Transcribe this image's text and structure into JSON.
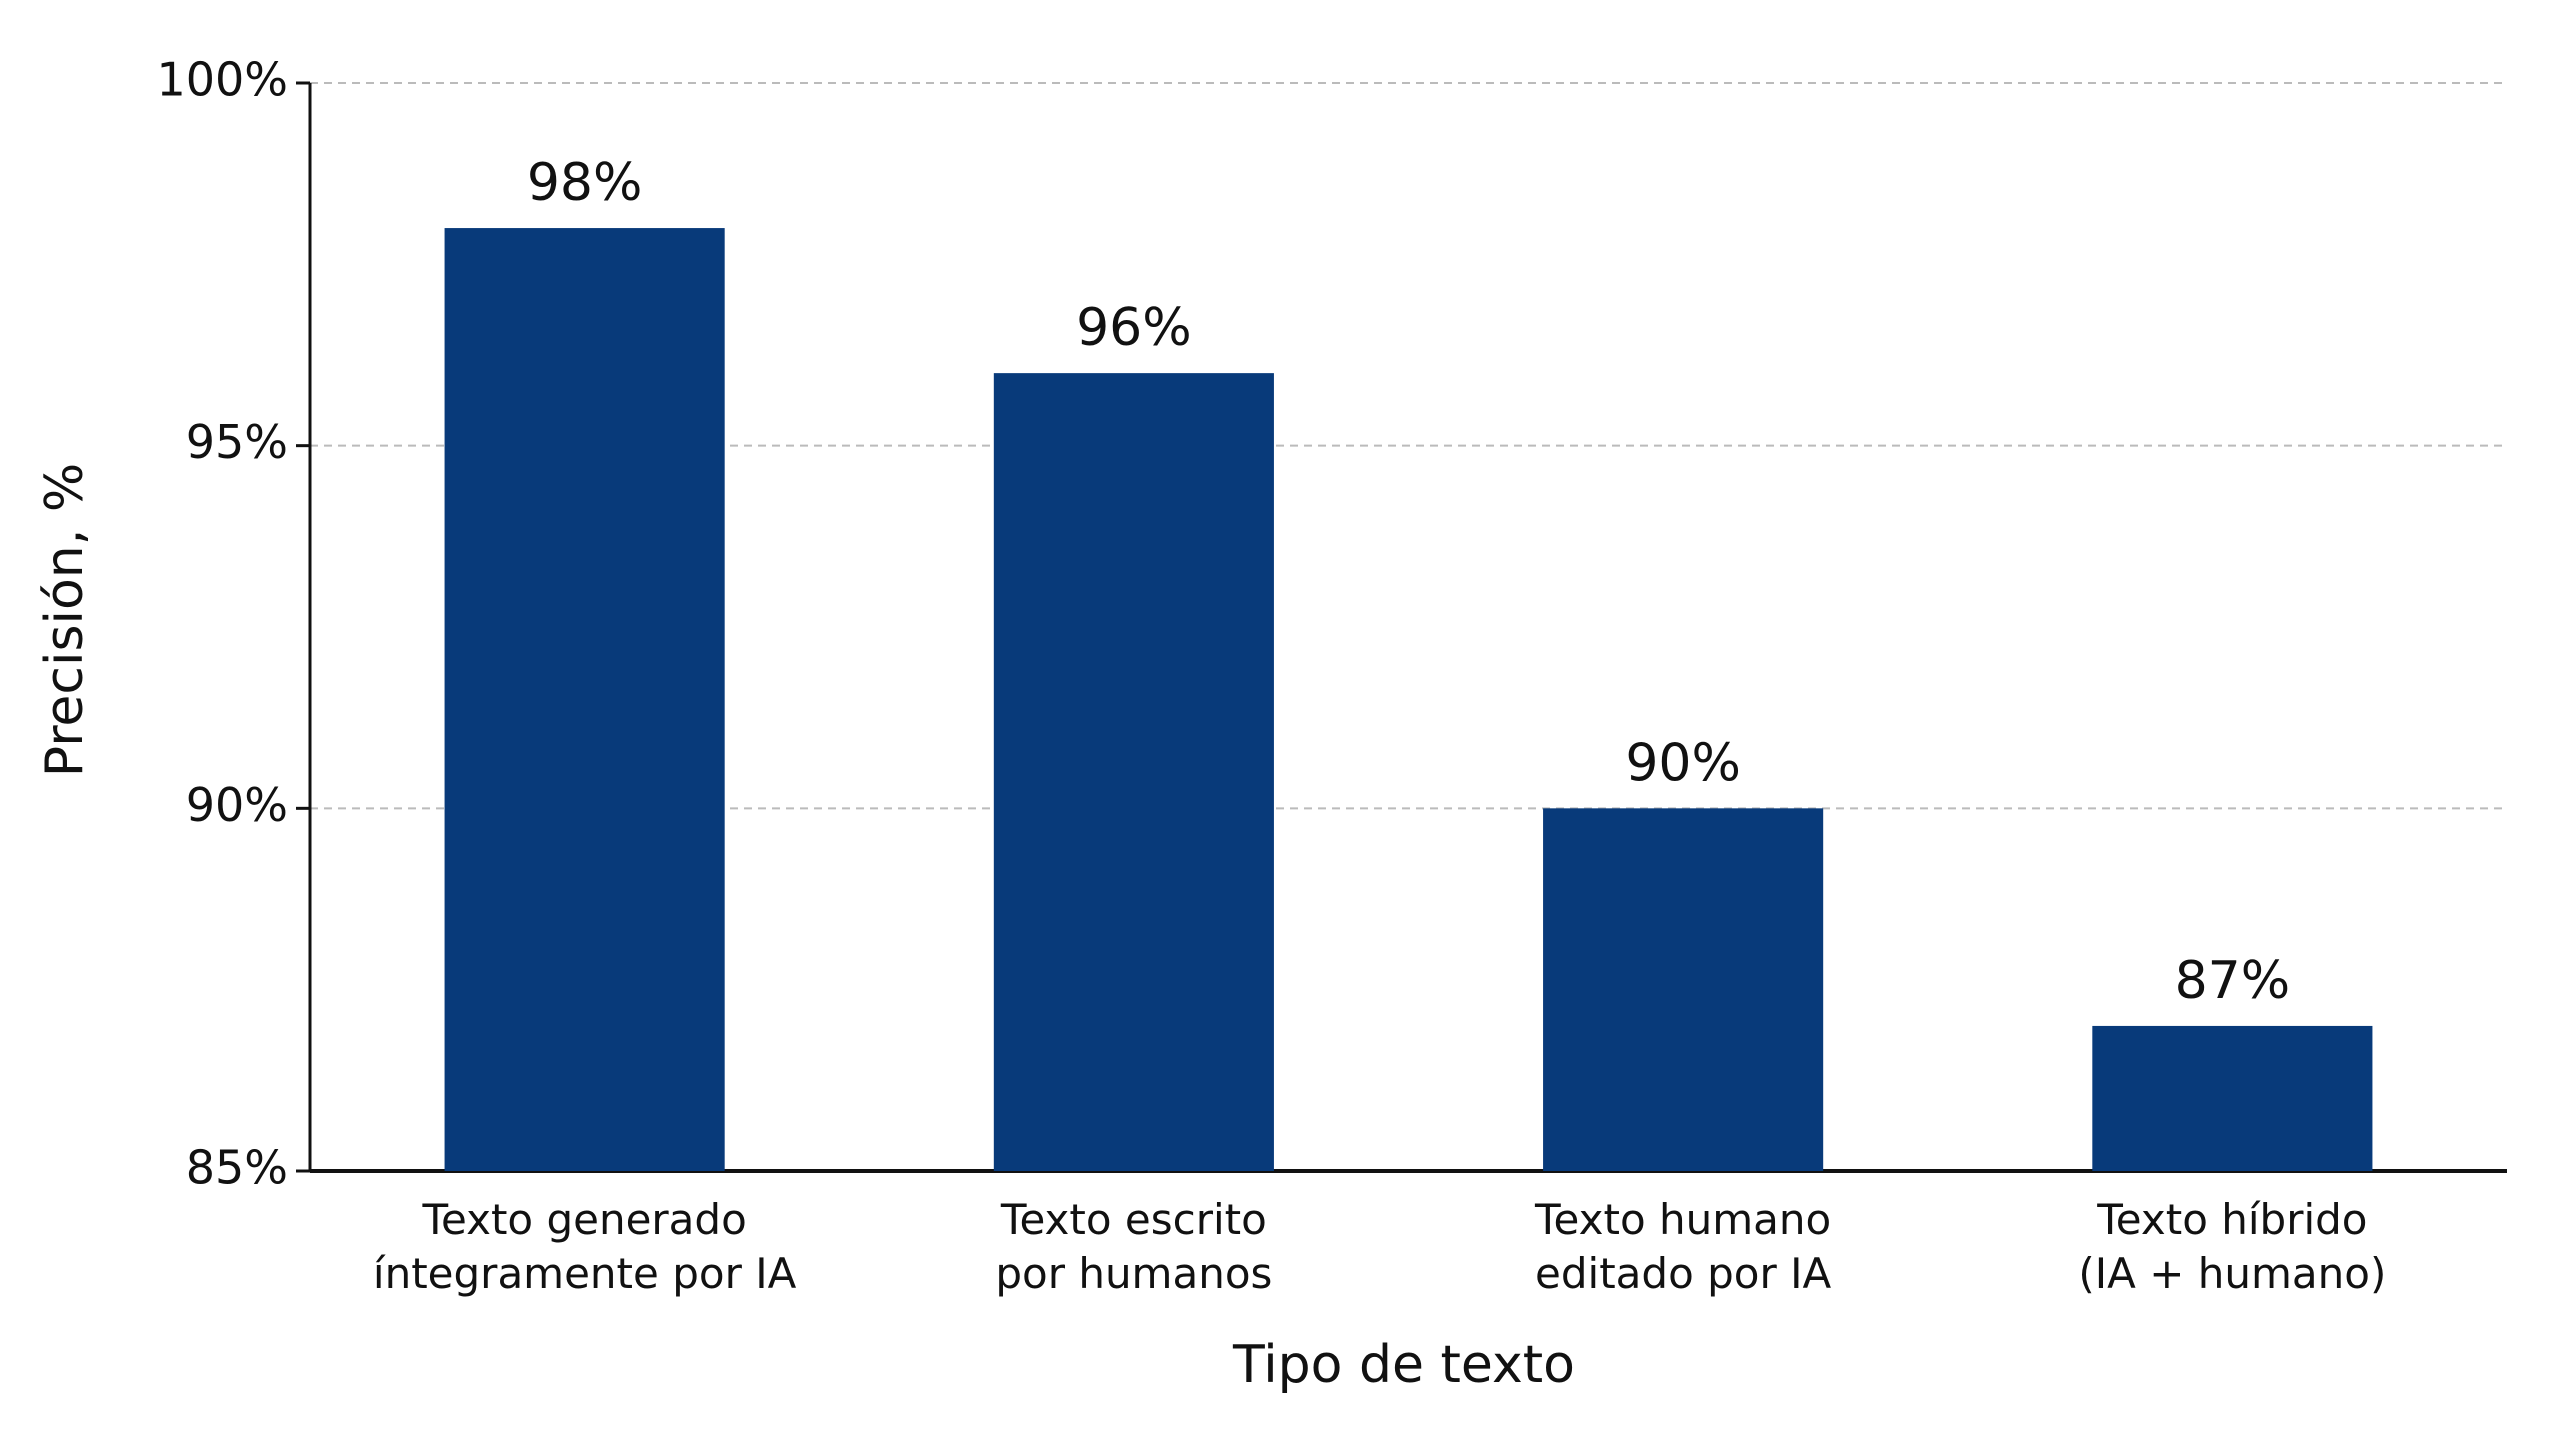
{
  "chart_data": {
    "type": "bar",
    "x_label": "Tipo de texto",
    "y_label": "Precisión, %",
    "categories": [
      "Texto generado\níntegramente por IA",
      "Texto escrito\npor humanos",
      "Texto humano\neditado por IA",
      "Texto híbrido\n(IA + humano)"
    ],
    "values": [
      98,
      96,
      90,
      87
    ],
    "value_labels": [
      "98%",
      "96%",
      "90%",
      "87%"
    ],
    "color": "#083a7a",
    "ylim": [
      85,
      100
    ],
    "yticks": [
      {
        "value": 85,
        "label": "85%"
      },
      {
        "value": 90,
        "label": "90%"
      },
      {
        "value": 95,
        "label": "95%"
      },
      {
        "value": 100,
        "label": "100%"
      }
    ],
    "grid": true
  }
}
